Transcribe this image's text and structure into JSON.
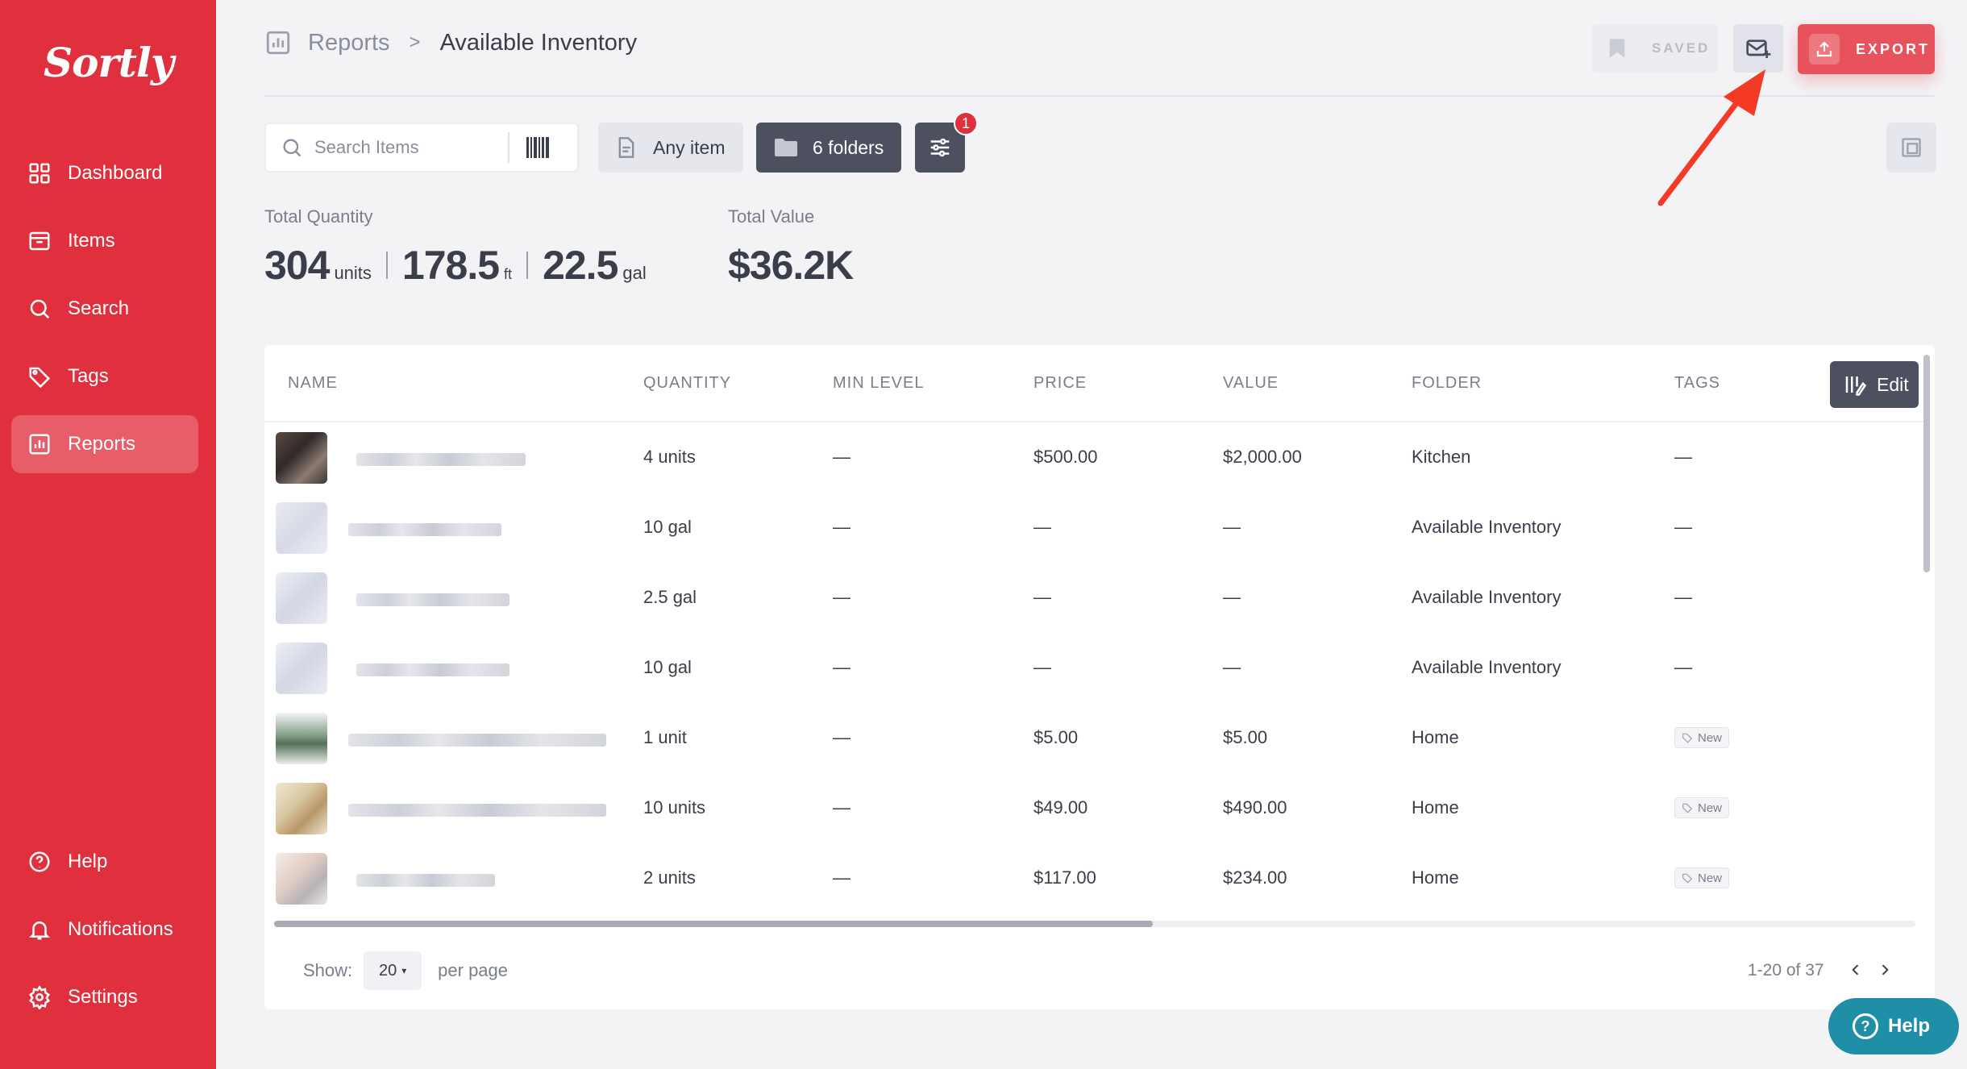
{
  "app": {
    "logo": "Sortly",
    "brand_color": "#e0303e"
  },
  "sidebar": {
    "items": [
      {
        "label": "Dashboard",
        "icon": "dashboard-icon"
      },
      {
        "label": "Items",
        "icon": "items-icon"
      },
      {
        "label": "Search",
        "icon": "search-icon"
      },
      {
        "label": "Tags",
        "icon": "tag-icon"
      },
      {
        "label": "Reports",
        "icon": "reports-icon",
        "active": true
      }
    ],
    "bottom": [
      {
        "label": "Help",
        "icon": "help-icon"
      },
      {
        "label": "Notifications",
        "icon": "bell-icon"
      },
      {
        "label": "Settings",
        "icon": "gear-icon"
      }
    ]
  },
  "header": {
    "breadcrumb_root": "Reports",
    "breadcrumb_sep": ">",
    "breadcrumb_current": "Available Inventory",
    "saved_label": "SAVED",
    "export_label": "EXPORT"
  },
  "filters": {
    "search_placeholder": "Search Items",
    "any_item_label": "Any item",
    "folders_label": "6 folders",
    "filter_badge": "1"
  },
  "totals": {
    "quantity_label": "Total Quantity",
    "value_label": "Total Value",
    "quantities": [
      {
        "value": "304",
        "unit": "units"
      },
      {
        "value": "178.5",
        "unit": "ft"
      },
      {
        "value": "22.5",
        "unit": "gal"
      }
    ],
    "total_value": "$36.2K"
  },
  "table": {
    "columns": [
      "NAME",
      "QUANTITY",
      "MIN LEVEL",
      "PRICE",
      "VALUE",
      "FOLDER",
      "TAGS"
    ],
    "edit_label": "Edit",
    "rows": [
      {
        "quantity": "4 units",
        "min_level": "—",
        "price": "$500.00",
        "value": "$2,000.00",
        "folder": "Kitchen",
        "tags": "—"
      },
      {
        "quantity": "10 gal",
        "min_level": "—",
        "price": "—",
        "value": "—",
        "folder": "Available Inventory",
        "tags": "—"
      },
      {
        "quantity": "2.5 gal",
        "min_level": "—",
        "price": "—",
        "value": "—",
        "folder": "Available Inventory",
        "tags": "—"
      },
      {
        "quantity": "10 gal",
        "min_level": "—",
        "price": "—",
        "value": "—",
        "folder": "Available Inventory",
        "tags": "—"
      },
      {
        "quantity": "1 unit",
        "min_level": "—",
        "price": "$5.00",
        "value": "$5.00",
        "folder": "Home",
        "tag_badge": "New"
      },
      {
        "quantity": "10 units",
        "min_level": "—",
        "price": "$49.00",
        "value": "$490.00",
        "folder": "Home",
        "tag_badge": "New"
      },
      {
        "quantity": "2 units",
        "min_level": "—",
        "price": "$117.00",
        "value": "$234.00",
        "folder": "Home",
        "tag_badge": "New"
      }
    ]
  },
  "pagination": {
    "show_label": "Show:",
    "per_page_value": "20",
    "per_page_suffix": "per page",
    "range_text": "1-20 of 37"
  },
  "help_button": {
    "label": "Help"
  }
}
